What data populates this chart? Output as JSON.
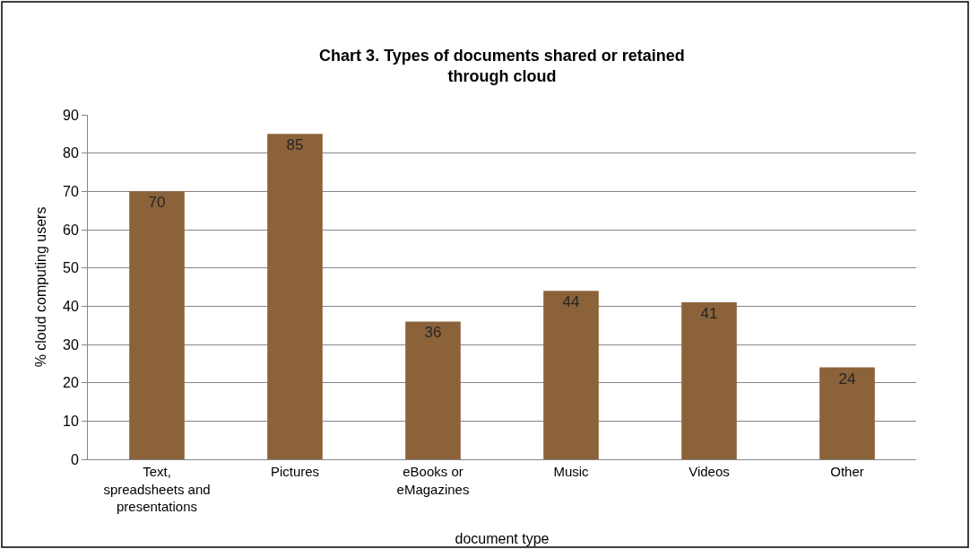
{
  "chart_data": {
    "type": "bar",
    "title": "Chart 3. Types of documents shared or retained through cloud",
    "xlabel": "document type",
    "ylabel": "% cloud computing users",
    "categories": [
      "Text, spreadsheets and presentations",
      "Pictures",
      "eBooks or eMagazines",
      "Music",
      "Videos",
      "Other"
    ],
    "values": [
      70,
      85,
      36,
      44,
      41,
      24
    ],
    "color": "#8b6239",
    "ylim": [
      0,
      90
    ],
    "yticks": [
      0,
      10,
      20,
      30,
      40,
      50,
      60,
      70,
      80,
      90
    ],
    "grid": "y",
    "data_labels": true
  }
}
